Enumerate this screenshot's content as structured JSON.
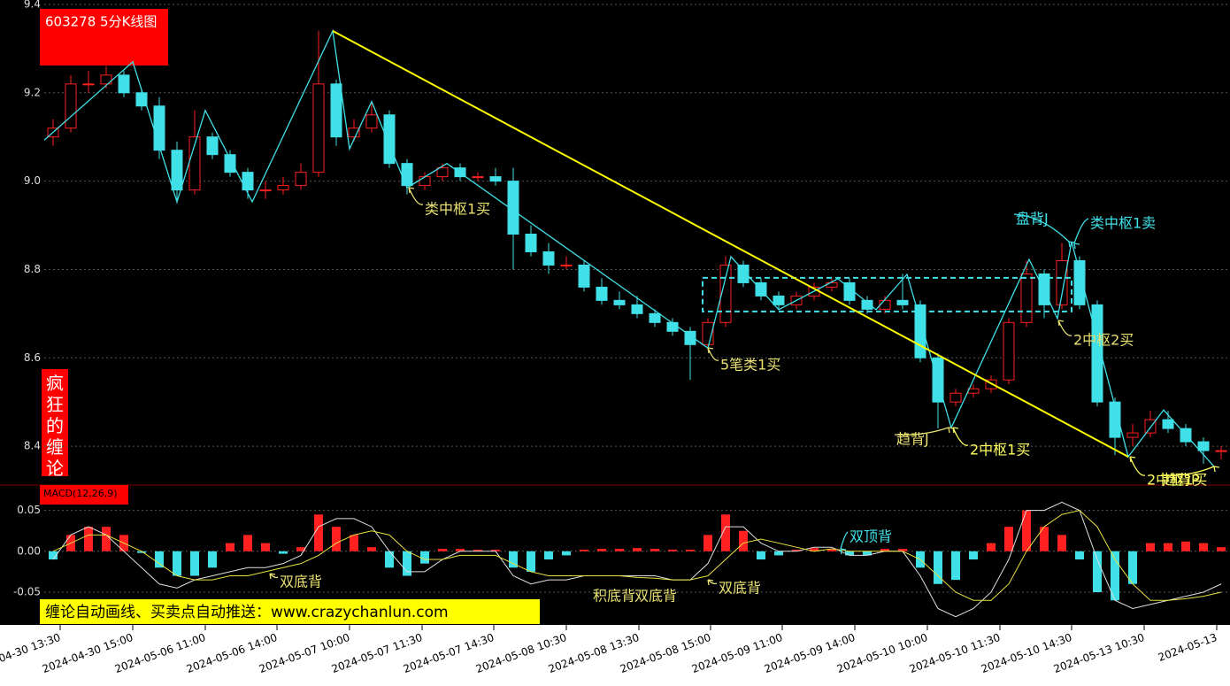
{
  "chart_data": [
    {
      "type": "candlestick",
      "title": "603278 5分K线图",
      "side_label": "疯狂的缠论",
      "banner": "缠论自动画线、买卖点自动推送：www.crazychanlun.com",
      "up_color": "#ff2020",
      "down_color": "#40e0e8",
      "xlim": [
        -0.5,
        66.5
      ],
      "ylim": [
        8.312,
        9.41
      ],
      "grid": true,
      "yticks": [
        9.4,
        9.2,
        {
          "value": 9,
          "label": "9.0"
        },
        8.8,
        8.6,
        8.4
      ],
      "xticks": [
        {
          "value": 0.4,
          "label": "2024-04-30 13:30"
        },
        {
          "value": 4.5,
          "label": "2024-04-30 15:00"
        },
        {
          "value": 8.6,
          "label": "2024-05-06 11:00"
        },
        {
          "value": 12.65,
          "label": "2024-05-06 14:00"
        },
        {
          "value": 16.75,
          "label": "2024-05-07 10:00"
        },
        {
          "value": 20.85,
          "label": "2024-05-07 11:30"
        },
        {
          "value": 24.9,
          "label": "2024-05-07 14:30"
        },
        {
          "value": 29,
          "label": "2024-05-08 10:30"
        },
        {
          "value": 33.1,
          "label": "2024-05-08 13:30"
        },
        {
          "value": 37.15,
          "label": "2024-05-08 15:00"
        },
        {
          "value": 41.2,
          "label": "2024-05-09 11:00"
        },
        {
          "value": 45.3,
          "label": "2024-05-09 14:00"
        },
        {
          "value": 49.4,
          "label": "2024-05-10 10:00"
        },
        {
          "value": 53.5,
          "label": "2024-05-10 11:30"
        },
        {
          "value": 57.55,
          "label": "2024-05-10 14:30"
        },
        {
          "value": 61.65,
          "label": "2024-05-13 10:30"
        },
        {
          "value": 65.75,
          "label": "2024-05-13"
        }
      ],
      "open": [
        9.1,
        9.12,
        9.22,
        9.22,
        9.24,
        9.2,
        9.17,
        9.07,
        8.98,
        9.1,
        9.06,
        9.02,
        8.98,
        8.98,
        8.99,
        9.02,
        9.22,
        9.1,
        9.12,
        9.15,
        9.04,
        8.99,
        9.01,
        9.03,
        9.01,
        9.01,
        9.0,
        8.88,
        8.84,
        8.81,
        8.81,
        8.76,
        8.73,
        8.72,
        8.7,
        8.68,
        8.66,
        8.63,
        8.68,
        8.81,
        8.77,
        8.74,
        8.72,
        8.74,
        8.76,
        8.77,
        8.73,
        8.71,
        8.73,
        8.72,
        8.6,
        8.5,
        8.52,
        8.53,
        8.55,
        8.68,
        8.79,
        8.72,
        8.82,
        8.72,
        8.5,
        8.42,
        8.43,
        8.46,
        8.44,
        8.41,
        8.39
      ],
      "high": [
        9.14,
        9.24,
        9.25,
        9.26,
        9.25,
        9.21,
        9.19,
        9.09,
        9.16,
        9.11,
        9.07,
        9.03,
        9.0,
        9.01,
        9.04,
        9.34,
        9.23,
        9.14,
        9.18,
        9.16,
        9.05,
        9.02,
        9.04,
        9.04,
        9.02,
        9.03,
        9.03,
        8.9,
        8.86,
        8.83,
        8.82,
        8.78,
        8.75,
        8.74,
        8.71,
        8.69,
        8.67,
        8.69,
        8.83,
        8.82,
        8.78,
        8.75,
        8.75,
        8.77,
        8.78,
        8.78,
        8.74,
        8.74,
        8.79,
        8.73,
        8.61,
        8.53,
        8.54,
        8.56,
        8.69,
        8.82,
        8.8,
        8.86,
        8.83,
        8.73,
        8.51,
        8.45,
        8.48,
        8.48,
        8.45,
        8.42,
        8.4
      ],
      "low": [
        9.08,
        9.11,
        9.2,
        9.21,
        9.19,
        9.16,
        9.05,
        8.95,
        8.97,
        9.05,
        9.01,
        8.96,
        8.96,
        8.97,
        8.98,
        9.01,
        9.08,
        9.09,
        9.11,
        9.03,
        8.97,
        8.98,
        9.0,
        9.0,
        9.0,
        8.99,
        8.8,
        8.83,
        8.79,
        8.8,
        8.75,
        8.72,
        8.71,
        8.69,
        8.67,
        8.65,
        8.55,
        8.62,
        8.67,
        8.76,
        8.73,
        8.71,
        8.71,
        8.73,
        8.75,
        8.72,
        8.7,
        8.7,
        8.71,
        8.59,
        8.44,
        8.49,
        8.51,
        8.52,
        8.54,
        8.67,
        8.69,
        8.71,
        8.71,
        8.49,
        8.38,
        8.4,
        8.42,
        8.43,
        8.4,
        8.36,
        8.37
      ],
      "close": [
        9.12,
        9.22,
        9.22,
        9.24,
        9.2,
        9.17,
        9.07,
        8.98,
        9.1,
        9.06,
        9.02,
        8.98,
        8.98,
        8.99,
        9.02,
        9.22,
        9.1,
        9.12,
        9.15,
        9.04,
        8.99,
        9.01,
        9.03,
        9.01,
        9.01,
        9.0,
        8.88,
        8.84,
        8.81,
        8.81,
        8.76,
        8.73,
        8.72,
        8.7,
        8.68,
        8.66,
        8.63,
        8.68,
        8.81,
        8.77,
        8.74,
        8.72,
        8.74,
        8.76,
        8.77,
        8.73,
        8.71,
        8.73,
        8.72,
        8.6,
        8.5,
        8.52,
        8.53,
        8.55,
        8.68,
        8.79,
        8.72,
        8.82,
        8.72,
        8.5,
        8.42,
        8.43,
        8.46,
        8.44,
        8.41,
        8.39,
        8.39
      ],
      "strokes": {
        "color": "#40e0e8",
        "x": [
          -0.5,
          4.5,
          7,
          8.6,
          11.25,
          15.8,
          16.75,
          18,
          20,
          22.25,
          37,
          38.3,
          41,
          44.35,
          46.5,
          48.25,
          50.75,
          55.15,
          56.75,
          57.55,
          60.75,
          62.75,
          65.6
        ],
        "y": [
          9.093,
          9.27,
          8.953,
          9.16,
          8.953,
          9.34,
          9.073,
          9.18,
          8.985,
          9.04,
          8.622,
          8.829,
          8.709,
          8.779,
          8.709,
          8.789,
          8.442,
          8.823,
          8.689,
          8.863,
          8.376,
          8.482,
          8.354
        ]
      },
      "trend_line": {
        "color": "#ffff00",
        "x": [
          15.8,
          60.75
        ],
        "y": [
          9.34,
          8.376
        ]
      },
      "pivot_box": {
        "color": "#40e0e8",
        "x": [
          36.7,
          57.55
        ],
        "y": [
          8.705,
          8.781
        ]
      },
      "annotations": [
        {
          "text": "类中枢1买",
          "color": "#e8e070"
        },
        {
          "text": "5笔类1买",
          "color": "#e8e070"
        },
        {
          "text": "趋背J",
          "color": "#e8e070"
        },
        {
          "text": "2中枢1买",
          "color": "#ffff60"
        },
        {
          "text": "盘背J",
          "color": "#40e0e8"
        },
        {
          "text": "类中枢1卖",
          "color": "#40e0e8"
        },
        {
          "text": "2中枢2买",
          "color": "#e8e070"
        },
        {
          "text": "2中枢1买",
          "color": "#ffff60"
        },
        {
          "text": "趋背P",
          "color": "#ffff60"
        }
      ]
    },
    {
      "type": "macd",
      "title": "MACD(12,26,9)",
      "up_color": "#ff2020",
      "down_color": "#40e0e8",
      "xlim": [
        -0.5,
        66.5
      ],
      "ylim": [
        -0.089,
        0.081
      ],
      "grid": true,
      "yticks": [
        0.05,
        {
          "value": 0,
          "label": "0.00"
        },
        -0.05
      ],
      "values": [
        -0.01,
        0.02,
        0.03,
        0.03,
        0.02,
        -0.002,
        -0.02,
        -0.03,
        -0.03,
        -0.02,
        0.01,
        0.02,
        0.01,
        -0.003,
        0.005,
        0.045,
        0.03,
        0.02,
        0.005,
        -0.02,
        -0.03,
        -0.015,
        0.003,
        0.003,
        0.002,
        0.002,
        -0.02,
        -0.025,
        -0.01,
        -0.005,
        0.002,
        0.003,
        0.003,
        0.004,
        0.003,
        0.002,
        0.002,
        0.02,
        0.045,
        0.025,
        -0.01,
        -0.005,
        0.002,
        0.004,
        0.003,
        -0.005,
        -0.005,
        0.003,
        0.003,
        -0.02,
        -0.04,
        -0.035,
        -0.01,
        0.01,
        0.03,
        0.05,
        0.03,
        0.02,
        -0.01,
        -0.05,
        -0.06,
        -0.04,
        0.01,
        0.01,
        0.012,
        0.01,
        0.005
      ],
      "lines": [
        {
          "color": "#e0e0e0",
          "values": [
            -0.01,
            0.02,
            0.03,
            0.02,
            0.0,
            -0.02,
            -0.04,
            -0.045,
            -0.035,
            -0.03,
            -0.025,
            -0.02,
            -0.02,
            -0.015,
            -0.005,
            0.03,
            0.04,
            0.04,
            0.03,
            0.0,
            -0.025,
            -0.025,
            -0.01,
            0.0,
            0.0,
            0.0,
            -0.03,
            -0.04,
            -0.035,
            -0.035,
            -0.03,
            -0.03,
            -0.03,
            -0.03,
            -0.03,
            -0.035,
            -0.035,
            -0.015,
            0.03,
            0.03,
            0.01,
            0.0,
            0.0,
            0.005,
            0.005,
            -0.005,
            -0.005,
            0.0,
            0.0,
            -0.03,
            -0.07,
            -0.08,
            -0.07,
            -0.05,
            -0.01,
            0.05,
            0.05,
            0.06,
            0.05,
            -0.01,
            -0.06,
            -0.07,
            -0.065,
            -0.06,
            -0.055,
            -0.05,
            -0.04
          ]
        },
        {
          "color": "#e8e040",
          "values": [
            0.0,
            0.01,
            0.02,
            0.02,
            0.01,
            0.0,
            -0.015,
            -0.03,
            -0.035,
            -0.035,
            -0.03,
            -0.03,
            -0.025,
            -0.02,
            -0.015,
            -0.005,
            0.01,
            0.02,
            0.025,
            0.02,
            0.0,
            -0.01,
            -0.01,
            -0.005,
            -0.005,
            -0.005,
            -0.015,
            -0.025,
            -0.03,
            -0.03,
            -0.03,
            -0.03,
            -0.03,
            -0.032,
            -0.033,
            -0.035,
            -0.035,
            -0.03,
            -0.01,
            0.01,
            0.015,
            0.01,
            0.005,
            0.0,
            0.003,
            0.0,
            0.0,
            0.0,
            0.0,
            -0.01,
            -0.03,
            -0.05,
            -0.06,
            -0.06,
            -0.04,
            0.0,
            0.03,
            0.045,
            0.05,
            0.03,
            -0.01,
            -0.04,
            -0.06,
            -0.06,
            -0.058,
            -0.055,
            -0.05
          ]
        }
      ],
      "annotations": [
        {
          "text": "双底背",
          "color": "#e8e070"
        },
        {
          "text": "积底背",
          "color": "#e8e070"
        },
        {
          "text": "双底背",
          "color": "#e8e070"
        },
        {
          "text": "双底背",
          "color": "#e8e070"
        },
        {
          "text": "双顶背",
          "color": "#40e0e8"
        }
      ]
    }
  ]
}
